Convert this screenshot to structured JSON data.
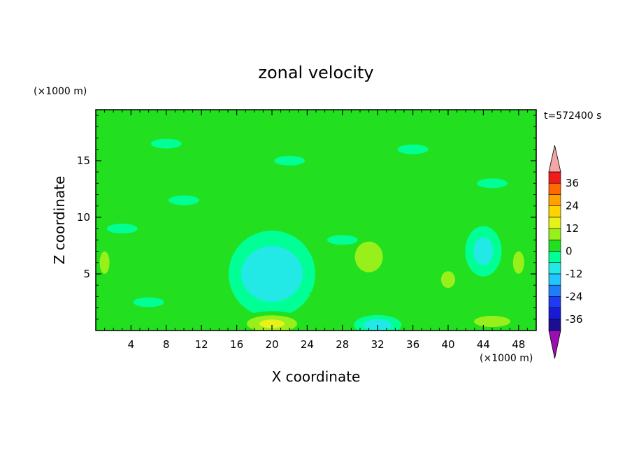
{
  "chart_data": {
    "type": "heatmap",
    "title": "zonal velocity",
    "xlabel": "X coordinate",
    "ylabel": "Z coordinate",
    "x_unit": "(×1000 m)",
    "z_unit": "(×1000 m)",
    "time_label": "t=572400 s",
    "xlim": [
      0,
      50
    ],
    "zlim": [
      0,
      19.5
    ],
    "x_ticks": [
      4,
      8,
      12,
      16,
      20,
      24,
      28,
      32,
      36,
      40,
      44,
      48
    ],
    "z_ticks": [
      5,
      10,
      15
    ],
    "colorbar": {
      "levels": [
        -42,
        -36,
        -30,
        -24,
        -18,
        -12,
        -6,
        0,
        6,
        12,
        18,
        24,
        30,
        36,
        42
      ],
      "tick_labels": [
        "36",
        "24",
        "12",
        "0",
        "-12",
        "-24",
        "-36"
      ],
      "tick_values": [
        36,
        24,
        12,
        0,
        -12,
        -24,
        -36
      ],
      "colors": [
        "#1b0e91",
        "#1a1ad6",
        "#1d3bf4",
        "#1f7ef7",
        "#22c6ff",
        "#22e9e6",
        "#00ff95",
        "#22e01f",
        "#98f01a",
        "#e6f21a",
        "#ffd300",
        "#ffa100",
        "#ff6a00",
        "#f21a1a"
      ],
      "under_color": "#9a0fb3",
      "over_color": "#f4a5a5"
    },
    "field_features": [
      {
        "x": 20,
        "z": 5,
        "value": -9,
        "description_value": "negative core"
      },
      {
        "x": 20,
        "z": 0.6,
        "value": 14
      },
      {
        "x": 31,
        "z": 6.5,
        "value": 7
      },
      {
        "x": 40,
        "z": 4.5,
        "value": 6
      },
      {
        "x": 32,
        "z": 0.5,
        "value": -10
      },
      {
        "x": 45,
        "z": 0.8,
        "value": 7
      },
      {
        "x": 48,
        "z": 6,
        "value": 6
      },
      {
        "x": 1,
        "z": 6,
        "value": 6
      },
      {
        "x": 44,
        "z": 7,
        "value": -7
      }
    ],
    "background_value": 0
  }
}
